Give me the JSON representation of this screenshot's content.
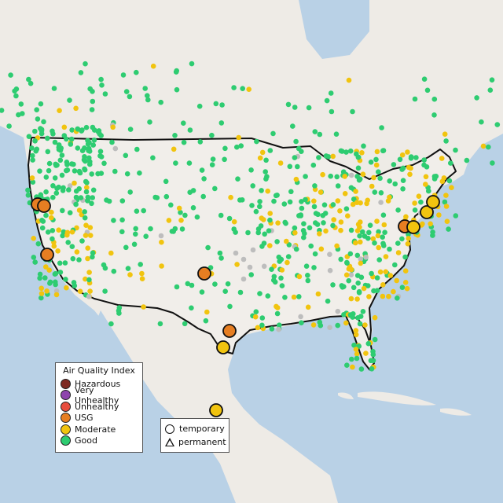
{
  "colors": {
    "water": "#b9d1e6",
    "land": "#eeebe6",
    "us_land": "#f1eeea",
    "border": "#111111",
    "state_line": "#9a9a9a",
    "Hazardous": "#7e2a22",
    "Very Unhealthy": "#8e44ad",
    "Unhealthy": "#e74c3c",
    "USG": "#e67e22",
    "Moderate": "#f1c40f",
    "Good": "#2ecc71",
    "no_data": "#bdbdbd"
  },
  "aqi_legend": {
    "title": "Air Quality Index",
    "items": [
      {
        "label": "Hazardous",
        "color": "#7e2a22"
      },
      {
        "label": "Very Unhealthy",
        "color": "#8e44ad"
      },
      {
        "label": "Unhealthy",
        "color": "#e74c3c"
      },
      {
        "label": "USG",
        "color": "#e67e22"
      },
      {
        "label": "Moderate",
        "color": "#f1c40f"
      },
      {
        "label": "Good",
        "color": "#2ecc71"
      }
    ]
  },
  "type_legend": {
    "temporary_label": "temporary",
    "permanent_label": "permanent"
  },
  "large_monitors": [
    {
      "category": "USG"
    },
    {
      "category": "USG"
    },
    {
      "category": "USG"
    },
    {
      "category": "USG"
    },
    {
      "category": "USG"
    },
    {
      "category": "USG"
    },
    {
      "category": "Moderate"
    },
    {
      "category": "Moderate"
    },
    {
      "category": "Moderate"
    },
    {
      "category": "Moderate"
    },
    {
      "category": "Moderate"
    }
  ]
}
